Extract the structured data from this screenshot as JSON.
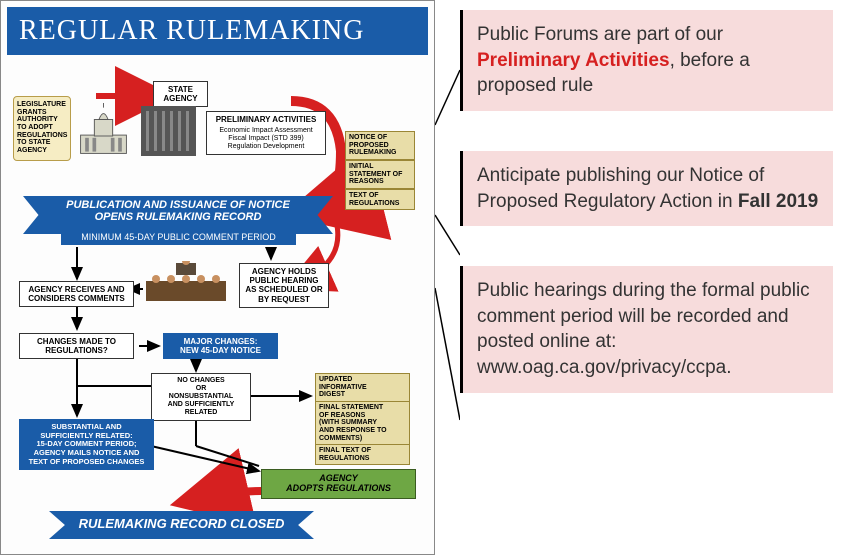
{
  "title": "REGULAR RULEMAKING",
  "callouts": [
    {
      "parts": [
        {
          "t": "Public Forums are part of our "
        },
        {
          "t": "Preliminary Activities",
          "cls": "red"
        },
        {
          "t": ", before a proposed rule"
        }
      ]
    },
    {
      "parts": [
        {
          "t": "Anticipate publishing our Notice of Proposed Regulatory Action in "
        },
        {
          "t": "Fall 2019",
          "cls": "bold"
        }
      ]
    },
    {
      "parts": [
        {
          "t": "Public hearings during the formal public comment period will be recorded and posted online at: www.oag.ca.gov/privacy/ccpa."
        }
      ]
    }
  ],
  "boxes": {
    "legisScroll": "LEGISLATURE GRANTS AUTHORITY TO ADOPT REGULATIONS TO STATE AGENCY",
    "stateAgency": "STATE\nAGENCY",
    "prelim": {
      "head": "PRELIMINARY ACTIVITIES",
      "body": "Economic Impact Assessment\nFiscal Impact (STD 399)\nRegulation Development"
    },
    "bannerMain": "PUBLICATION AND ISSUANCE OF NOTICE\nOPENS RULEMAKING RECORD",
    "bannerSub": "MINIMUM 45-DAY PUBLIC COMMENT PERIOD",
    "agencyReceives": "AGENCY RECEIVES AND\nCONSIDERS COMMENTS",
    "hearing": "AGENCY HOLDS\nPUBLIC HEARING\nAS SCHEDULED OR\nBY REQUEST",
    "changes": "CHANGES MADE TO\nREGULATIONS?",
    "major": "MAJOR CHANGES:\nNEW 45-DAY NOTICE",
    "nochanges": "NO CHANGES\nOR\nNONSUBSTANTIAL\nAND SUFFICIENTLY\nRELATED",
    "substantial": "SUBSTANTIAL AND\nSUFFICIENTLY RELATED:\n15-DAY COMMENT PERIOD;\nAGENCY MAILS NOTICE AND\nTEXT OF PROPOSED CHANGES",
    "adopts": "AGENCY\nADOPTS REGULATIONS",
    "closed": "RULEMAKING RECORD CLOSED",
    "tabs1": [
      "NOTICE OF\nPROPOSED\nRULEMAKING",
      "INITIAL\nSTATEMENT OF\nREASONS",
      "TEXT OF\nREGULATIONS"
    ],
    "tabs2": [
      "UPDATED\nINFORMATIVE\nDIGEST",
      "FINAL STATEMENT\nOF REASONS\n(WITH SUMMARY\nAND RESPONSE TO\nCOMMENTS)",
      "FINAL TEXT OF\nREGULATIONS"
    ]
  },
  "colors": {
    "blue": "#1a5ca8",
    "red": "#d62020",
    "callout_bg": "#f7dcdc",
    "green": "#6ea744",
    "scroll": "#f6edc4",
    "tab": "#e8dda8"
  }
}
